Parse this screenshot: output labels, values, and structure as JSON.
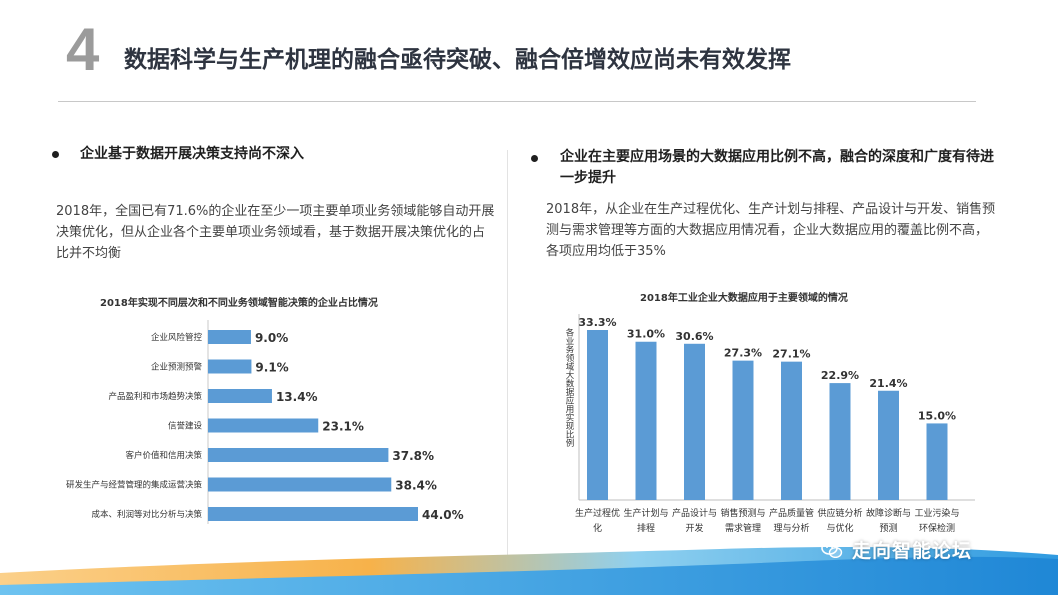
{
  "page": {
    "number": "4",
    "title": "数据科学与生产机理的融合亟待突破、融合倍增效应尚未有效发挥"
  },
  "left": {
    "heading": "企业基于数据开展决策支持尚不深入",
    "paragraph": "2018年，全国已有71.6%的企业在至少一项主要单项业务领域能够自动开展决策优化，但从企业各个主要单项业务领域看，基于数据开展决策优化的占比并不均衡"
  },
  "right": {
    "heading": "企业在主要应用场景的大数据应用比例不高，融合的深度和广度有待进一步提升",
    "paragraph": "2018年，从企业在生产过程优化、生产计划与排程、产品设计与开发、销售预测与需求管理等方面的大数据应用情况看，企业大数据应用的覆盖比例不高，各项应用均低于35%"
  },
  "chart_data": [
    {
      "type": "bar",
      "orientation": "horizontal",
      "title": "2018年实现不同层次和不同业务领域智能决策的企业占比情况",
      "categories": [
        "企业风险管控",
        "企业预测预警",
        "产品盈利和市场趋势决策",
        "信誉建设",
        "客户价值和信用决策",
        "研发生产与经营管理的集成运营决策",
        "成本、利润等对比分析与决策"
      ],
      "values": [
        9.0,
        9.1,
        13.4,
        23.1,
        37.8,
        38.4,
        44.0
      ],
      "labels": [
        "9.0%",
        "9.1%",
        "13.4%",
        "23.1%",
        "37.8%",
        "38.4%",
        "44.0%"
      ],
      "unit": "%",
      "xlim": [
        0,
        44
      ],
      "color": "#5b9bd5"
    },
    {
      "type": "bar",
      "orientation": "vertical",
      "title": "2018年工业企业大数据应用于主要领域的情况",
      "ylabel": "各业务领域大数据应用实现比例",
      "categories": [
        [
          "生产过程优",
          "化"
        ],
        [
          "生产计划与",
          "排程"
        ],
        [
          "产品设计与",
          "开发"
        ],
        [
          "销售预测与",
          "需求管理"
        ],
        [
          "产品质量管",
          "理与分析"
        ],
        [
          "供应链分析",
          "与优化"
        ],
        [
          "故障诊断与",
          "预测"
        ],
        [
          "工业污染与",
          "环保检测"
        ]
      ],
      "values": [
        33.3,
        31.0,
        30.6,
        27.3,
        27.1,
        22.9,
        21.4,
        15.0
      ],
      "labels": [
        "33.3%",
        "31.0%",
        "30.6%",
        "27.3%",
        "27.1%",
        "22.9%",
        "21.4%",
        "15.0%"
      ],
      "unit": "%",
      "ylim": [
        0,
        33.3
      ],
      "color": "#5b9bd5"
    }
  ],
  "footer": {
    "brand": "走向智能论坛",
    "icon": "wechat-icon"
  }
}
